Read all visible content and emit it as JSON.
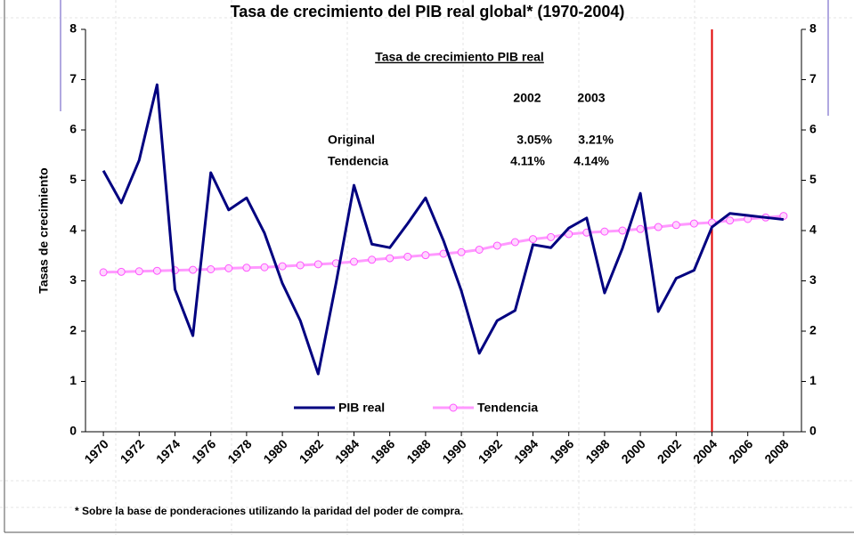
{
  "chart_data": {
    "type": "line",
    "title": "Tasa de crecimiento del PIB real global* (1970-2004)",
    "y_label": "Tasas de crecimiento",
    "x": [
      1970,
      1971,
      1972,
      1973,
      1974,
      1975,
      1976,
      1977,
      1978,
      1979,
      1980,
      1981,
      1982,
      1983,
      1984,
      1985,
      1986,
      1987,
      1988,
      1989,
      1990,
      1991,
      1992,
      1993,
      1994,
      1995,
      1996,
      1997,
      1998,
      1999,
      2000,
      2001,
      2002,
      2003,
      2004,
      2005,
      2006,
      2007,
      2008
    ],
    "xlim": [
      1969,
      2009
    ],
    "xticks": [
      1970,
      1972,
      1974,
      1976,
      1978,
      1980,
      1982,
      1984,
      1986,
      1988,
      1990,
      1992,
      1994,
      1996,
      1998,
      2000,
      2002,
      2004,
      2006,
      2008
    ],
    "ylim": [
      0,
      8
    ],
    "yticks": [
      0,
      1,
      2,
      3,
      4,
      5,
      6,
      7,
      8
    ],
    "y2lim": [
      0,
      8
    ],
    "y2ticks": [
      0,
      1,
      2,
      3,
      4,
      5,
      6,
      7,
      8
    ],
    "series": [
      {
        "name": "PIB real",
        "color": "#000080",
        "values": [
          5.19,
          4.55,
          5.4,
          6.9,
          2.83,
          1.91,
          5.15,
          4.41,
          4.65,
          3.95,
          2.95,
          2.21,
          1.15,
          2.96,
          4.9,
          3.73,
          3.66,
          4.14,
          4.65,
          3.8,
          2.8,
          1.56,
          2.21,
          2.41,
          3.72,
          3.66,
          4.05,
          4.25,
          2.76,
          3.65,
          4.74,
          2.39,
          3.05,
          3.21,
          4.07,
          4.34,
          4.3,
          4.26,
          4.22
        ]
      },
      {
        "name": "Tendencia",
        "color": "#ff99ff",
        "marker": "circle",
        "values": [
          3.17,
          3.18,
          3.19,
          3.2,
          3.21,
          3.22,
          3.23,
          3.25,
          3.26,
          3.27,
          3.29,
          3.31,
          3.33,
          3.35,
          3.38,
          3.42,
          3.45,
          3.48,
          3.51,
          3.54,
          3.57,
          3.62,
          3.7,
          3.77,
          3.83,
          3.87,
          3.93,
          3.96,
          3.98,
          4.0,
          4.03,
          4.07,
          4.11,
          4.14,
          4.16,
          4.2,
          4.23,
          4.26,
          4.29
        ]
      }
    ],
    "vline": {
      "x": 2004,
      "color": "#e00000"
    },
    "legend": "bottom",
    "inset": {
      "title": "Tasa de crecimiento PIB real",
      "columns": [
        "2002",
        "2003"
      ],
      "rows": [
        {
          "label": "Original",
          "values": [
            "3.05%",
            "3.21%"
          ]
        },
        {
          "label": "Tendencia",
          "values": [
            "4.11%",
            "4.14%"
          ]
        }
      ]
    },
    "footnote": "* Sobre la base de ponderaciones utilizando la paridad del poder de compra."
  }
}
